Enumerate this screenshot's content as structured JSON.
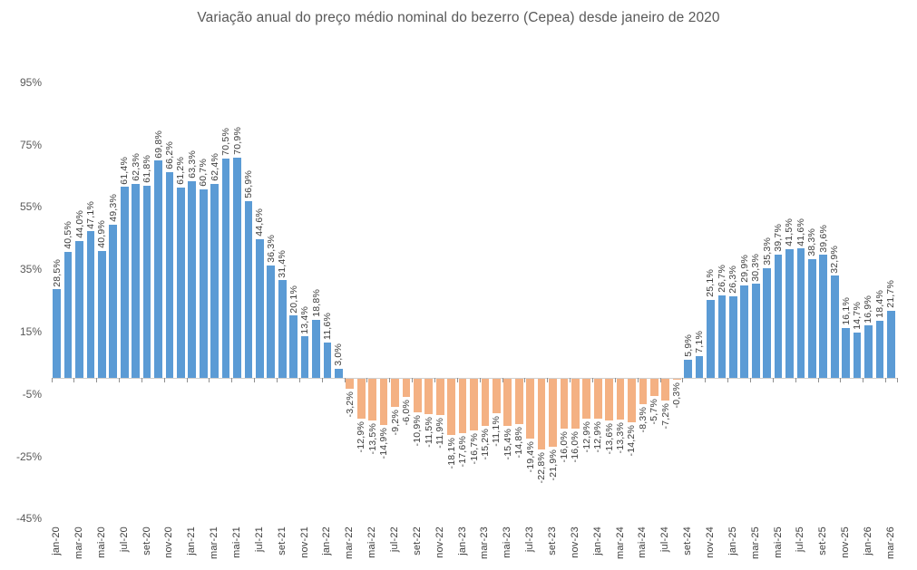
{
  "chart_data": {
    "type": "bar",
    "title": "Variação anual do preço médio nominal do bezerro (Cepea) desde janeiro de 2020",
    "xlabel": "",
    "ylabel": "",
    "ylim": [
      -45,
      95
    ],
    "grid": false,
    "legend": false,
    "x_tick_step": 2,
    "y_ticks": [
      "95%",
      "75%",
      "55%",
      "35%",
      "15%",
      "-5%",
      "-25%",
      "-45%"
    ],
    "y_tick_values": [
      95,
      75,
      55,
      35,
      15,
      -5,
      -25,
      -45
    ],
    "categories": [
      "jan-20",
      "fev-20",
      "mar-20",
      "abr-20",
      "mai-20",
      "jun-20",
      "jul-20",
      "ago-20",
      "set-20",
      "out-20",
      "nov-20",
      "dez-20",
      "jan-21",
      "fev-21",
      "mar-21",
      "abr-21",
      "mai-21",
      "jun-21",
      "jul-21",
      "ago-21",
      "set-21",
      "out-21",
      "nov-21",
      "dez-21",
      "jan-22",
      "fev-22",
      "mar-22",
      "abr-22",
      "mai-22",
      "jun-22",
      "jul-22",
      "ago-22",
      "set-22",
      "out-22",
      "nov-22",
      "dez-22",
      "jan-23",
      "fev-23",
      "mar-23",
      "abr-23",
      "mai-23",
      "jun-23",
      "jul-23",
      "ago-23",
      "set-23",
      "out-23",
      "nov-23",
      "dez-23",
      "jan-24",
      "fev-24",
      "mar-24",
      "abr-24",
      "mai-24",
      "jun-24",
      "jul-24",
      "ago-24",
      "set-24",
      "out-24",
      "nov-24",
      "dez-24",
      "jan-25",
      "fev-25",
      "mar-25",
      "abr-25",
      "mai-25",
      "jun-25",
      "jul-25",
      "ago-25",
      "set-25",
      "out-25",
      "nov-25",
      "dez-25",
      "jan-26",
      "fev-26",
      "mar-26"
    ],
    "values": [
      28.5,
      40.5,
      44.0,
      47.1,
      40.9,
      49.3,
      61.4,
      62.3,
      61.8,
      69.8,
      66.2,
      61.2,
      63.3,
      60.7,
      62.4,
      70.5,
      70.9,
      56.9,
      44.6,
      36.3,
      31.4,
      20.1,
      13.4,
      18.8,
      11.6,
      3.0,
      -3.2,
      -12.9,
      -13.5,
      -14.9,
      -9.2,
      -6.0,
      -10.9,
      -11.5,
      -11.9,
      -18.1,
      -17.6,
      -16.7,
      -15.2,
      -11.1,
      -15.4,
      -14.8,
      -19.4,
      -22.8,
      -21.9,
      -16.0,
      -16.0,
      -12.9,
      -12.9,
      -13.6,
      -13.3,
      -14.2,
      -8.3,
      -5.7,
      -7.2,
      -0.3,
      5.9,
      7.1,
      25.1,
      26.7,
      26.3,
      29.9,
      30.3,
      35.3,
      39.7,
      41.5,
      41.6,
      38.3,
      39.6,
      32.9,
      16.1,
      14.7,
      16.9,
      18.4,
      21.7
    ],
    "labels": [
      "28,5%",
      "40,5%",
      "44,0%",
      "47,1%",
      "40,9%",
      "49,3%",
      "61,4%",
      "62,3%",
      "61,8%",
      "69,8%",
      "66,2%",
      "61,2%",
      "63,3%",
      "60,7%",
      "62,4%",
      "70,5%",
      "70,9%",
      "56,9%",
      "44,6%",
      "36,3%",
      "31,4%",
      "20,1%",
      "13,4%",
      "18,8%",
      "11,6%",
      "3,0%",
      "-3,2%",
      "-12,9%",
      "-13,5%",
      "-14,9%",
      "-9,2%",
      "-6,0%",
      "-10,9%",
      "-11,5%",
      "-11,9%",
      "-18,1%",
      "-17,6%",
      "-16,7%",
      "-15,2%",
      "-11,1%",
      "-15,4%",
      "-14,8%",
      "-19,4%",
      "-22,8%",
      "-21,9%",
      "-16,0%",
      "-16,0%",
      "-12,9%",
      "-12,9%",
      "-13,6%",
      "-13,3%",
      "-14,2%",
      "-8,3%",
      "-5,7%",
      "-7,2%",
      "-0,3%",
      "5,9%",
      "7,1%",
      "25,1%",
      "26,7%",
      "26,3%",
      "29,9%",
      "30,3%",
      "35,3%",
      "39,7%",
      "41,5%",
      "41,6%",
      "38,3%",
      "39,6%",
      "32,9%",
      "16,1%",
      "14,7%",
      "16,9%",
      "18,4%",
      "21,7%"
    ],
    "colors": {
      "positive_bar": "#5B9BD5",
      "negative_bar": "#F4B183",
      "axis_line": "#cfcfcf",
      "tick_mark": "#8f8f8f",
      "data_label": "#3d3d3d",
      "x_axis_label": "#3d3d3d",
      "y_axis_label": "#595959",
      "title": "#595959"
    }
  }
}
